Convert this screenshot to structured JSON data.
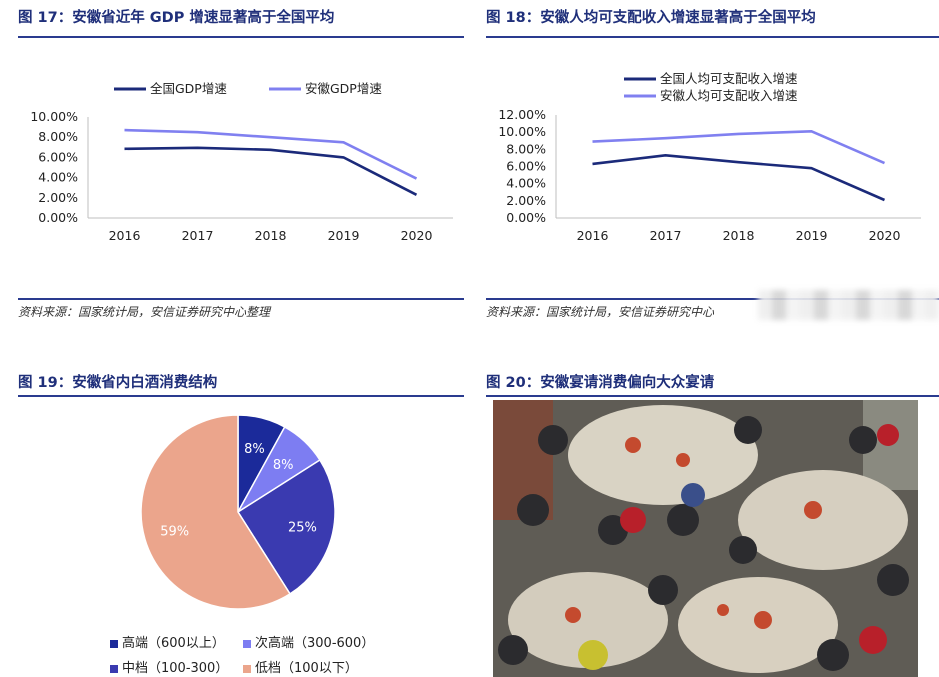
{
  "figures": {
    "f17": {
      "title": "图 17：安徽省近年 GDP 增速显著高于全国平均",
      "source": "资料来源：国家统计局，安信证券研究中心整理"
    },
    "f18": {
      "title": "图 18：安徽人均可支配收入增速显著高于全国平均",
      "source": "资料来源：国家统计局，安信证券研究中心"
    },
    "f19": {
      "title": "图 19：安徽省内白酒消费结构"
    },
    "f20": {
      "title": "图 20：安徽宴请消费偏向大众宴请"
    }
  },
  "colors": {
    "dark": "#1b2a7a",
    "light": "#8080f0",
    "mid": "#3a3ab0",
    "salmon": "#eba58c",
    "rule": "#2a3b8f"
  },
  "chart_data": [
    {
      "type": "line",
      "x": [
        "2016",
        "2017",
        "2018",
        "2019",
        "2020"
      ],
      "ylim": [
        0,
        10
      ],
      "yticks": [
        "0.00%",
        "2.00%",
        "4.00%",
        "6.00%",
        "8.00%",
        "10.00%"
      ],
      "series": [
        {
          "name": "全国GDP增速",
          "values": [
            6.85,
            6.95,
            6.75,
            6.0,
            2.3
          ],
          "color": "#1b2a7a"
        },
        {
          "name": "安徽GDP增速",
          "values": [
            8.7,
            8.5,
            8.0,
            7.5,
            3.9
          ],
          "color": "#8080f0"
        }
      ],
      "legend": "top"
    },
    {
      "type": "line",
      "x": [
        "2016",
        "2017",
        "2018",
        "2019",
        "2020"
      ],
      "ylim": [
        0,
        12
      ],
      "yticks": [
        "0.00%",
        "2.00%",
        "4.00%",
        "6.00%",
        "8.00%",
        "10.00%",
        "12.00%"
      ],
      "series": [
        {
          "name": "全国人均可支配收入增速",
          "values": [
            6.3,
            7.3,
            6.5,
            5.8,
            2.1
          ],
          "color": "#1b2a7a"
        },
        {
          "name": "安徽人均可支配收入增速",
          "values": [
            8.9,
            9.3,
            9.8,
            10.1,
            6.4
          ],
          "color": "#8080f0"
        }
      ],
      "legend": "top"
    },
    {
      "type": "pie",
      "slices": [
        {
          "name": "高端（600以上）",
          "value": 8,
          "label": "8%",
          "color": "#1b2a9a"
        },
        {
          "name": "次高端（300-600）",
          "value": 8,
          "label": "8%",
          "color": "#7d7df2"
        },
        {
          "name": "中档（100-300）",
          "value": 25,
          "label": "25%",
          "color": "#3a3ab0"
        },
        {
          "name": "低档（100以下）",
          "value": 59,
          "label": "59%",
          "color": "#eba58c"
        }
      ],
      "legend": "bottom"
    }
  ]
}
